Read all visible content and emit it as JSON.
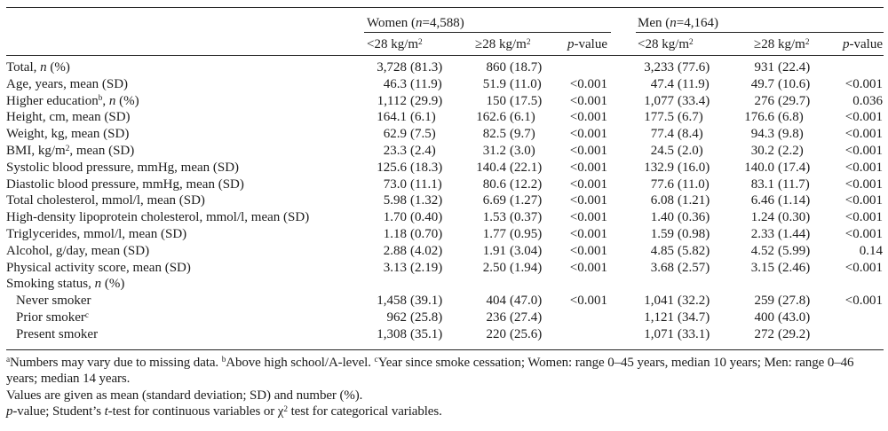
{
  "colors": {
    "background": "#ffffff",
    "text": "#1c1c1c",
    "rule": "#222222"
  },
  "table": {
    "group_headers": [
      {
        "segments": [
          [
            "Women ("
          ],
          [
            "n",
            "i"
          ],
          [
            "=4,588)"
          ]
        ]
      },
      {
        "segments": [
          [
            "Men ("
          ],
          [
            "n",
            "i"
          ],
          [
            "=4,164)"
          ]
        ]
      }
    ],
    "column_headers": {
      "lt28": {
        "segments": [
          [
            "<28 kg/m"
          ],
          [
            "2",
            "sup"
          ]
        ]
      },
      "ge28": {
        "segments": [
          [
            "≥28 kg/m"
          ],
          [
            "2",
            "sup"
          ]
        ]
      },
      "pvalue": {
        "segments": [
          [
            "p",
            "i"
          ],
          [
            "-value"
          ]
        ]
      }
    },
    "rows": [
      {
        "label": [
          [
            "Total, "
          ],
          [
            "n",
            "i"
          ],
          [
            " (%)"
          ]
        ],
        "indent": false,
        "w1": [
          "3,728",
          "(81.3)"
        ],
        "w2": [
          "860",
          "(18.7)"
        ],
        "wp": "",
        "m1": [
          "3,233",
          "(77.6)"
        ],
        "m2": [
          "931",
          "(22.4)"
        ],
        "mp": ""
      },
      {
        "label": [
          [
            "Age, years, mean (SD)"
          ]
        ],
        "indent": false,
        "w1": [
          "46.3",
          "(11.9)"
        ],
        "w2": [
          "51.9",
          "(11.0)"
        ],
        "wp": "<0.001",
        "m1": [
          "47.4",
          "(11.9)"
        ],
        "m2": [
          "49.7",
          "(10.6)"
        ],
        "mp": "<0.001"
      },
      {
        "label": [
          [
            "Higher education"
          ],
          [
            "b",
            "sup"
          ],
          [
            ", "
          ],
          [
            "n",
            "i"
          ],
          [
            " (%)"
          ]
        ],
        "indent": false,
        "w1": [
          "1,112",
          "(29.9)"
        ],
        "w2": [
          "150",
          "(17.5)"
        ],
        "wp": "<0.001",
        "m1": [
          "1,077",
          "(33.4)"
        ],
        "m2": [
          "276",
          "(29.7)"
        ],
        "mp": "0.036"
      },
      {
        "label": [
          [
            "Height, cm, mean (SD)"
          ]
        ],
        "indent": false,
        "w1": [
          "164.1",
          "(6.1)"
        ],
        "w2": [
          "162.6",
          "(6.1)"
        ],
        "wp": "<0.001",
        "m1": [
          "177.5",
          "(6.7)"
        ],
        "m2": [
          "176.6",
          "(6.8)"
        ],
        "mp": "<0.001"
      },
      {
        "label": [
          [
            "Weight, kg, mean (SD)"
          ]
        ],
        "indent": false,
        "w1": [
          "62.9",
          "(7.5)"
        ],
        "w2": [
          "82.5",
          "(9.7)"
        ],
        "wp": "<0.001",
        "m1": [
          "77.4",
          "(8.4)"
        ],
        "m2": [
          "94.3",
          "(9.8)"
        ],
        "mp": "<0.001"
      },
      {
        "label": [
          [
            "BMI, kg/m"
          ],
          [
            "2",
            "sup"
          ],
          [
            ", mean (SD)"
          ]
        ],
        "indent": false,
        "w1": [
          "23.3",
          "(2.4)"
        ],
        "w2": [
          "31.2",
          "(3.0)"
        ],
        "wp": "<0.001",
        "m1": [
          "24.5",
          "(2.0)"
        ],
        "m2": [
          "30.2",
          "(2.2)"
        ],
        "mp": "<0.001"
      },
      {
        "label": [
          [
            "Systolic blood pressure, mmHg, mean (SD)"
          ]
        ],
        "indent": false,
        "w1": [
          "125.6",
          "(18.3)"
        ],
        "w2": [
          "140.4",
          "(22.1)"
        ],
        "wp": "<0.001",
        "m1": [
          "132.9",
          "(16.0)"
        ],
        "m2": [
          "140.0",
          "(17.4)"
        ],
        "mp": "<0.001"
      },
      {
        "label": [
          [
            "Diastolic blood pressure, mmHg, mean (SD)"
          ]
        ],
        "indent": false,
        "w1": [
          "73.0",
          "(11.1)"
        ],
        "w2": [
          "80.6",
          "(12.2)"
        ],
        "wp": "<0.001",
        "m1": [
          "77.6",
          "(11.0)"
        ],
        "m2": [
          "83.1",
          "(11.7)"
        ],
        "mp": "<0.001"
      },
      {
        "label": [
          [
            "Total cholesterol, mmol/l, mean (SD)"
          ]
        ],
        "indent": false,
        "w1": [
          "5.98",
          "(1.32)"
        ],
        "w2": [
          "6.69",
          "(1.27)"
        ],
        "wp": "<0.001",
        "m1": [
          "6.08",
          "(1.21)"
        ],
        "m2": [
          "6.46",
          "(1.14)"
        ],
        "mp": "<0.001"
      },
      {
        "label": [
          [
            "High-density lipoprotein cholesterol, mmol/l, mean (SD)"
          ]
        ],
        "indent": false,
        "w1": [
          "1.70",
          "(0.40)"
        ],
        "w2": [
          "1.53",
          "(0.37)"
        ],
        "wp": "<0.001",
        "m1": [
          "1.40",
          "(0.36)"
        ],
        "m2": [
          "1.24",
          "(0.30)"
        ],
        "mp": "<0.001"
      },
      {
        "label": [
          [
            "Triglycerides, mmol/l, mean (SD)"
          ]
        ],
        "indent": false,
        "w1": [
          "1.18",
          "(0.70)"
        ],
        "w2": [
          "1.77",
          "(0.95)"
        ],
        "wp": "<0.001",
        "m1": [
          "1.59",
          "(0.98)"
        ],
        "m2": [
          "2.33",
          "(1.44)"
        ],
        "mp": "<0.001"
      },
      {
        "label": [
          [
            "Alcohol, g/day, mean (SD)"
          ]
        ],
        "indent": false,
        "w1": [
          "2.88",
          "(4.02)"
        ],
        "w2": [
          "1.91",
          "(3.04)"
        ],
        "wp": "<0.001",
        "m1": [
          "4.85",
          "(5.82)"
        ],
        "m2": [
          "4.52",
          "(5.99)"
        ],
        "mp": "0.14"
      },
      {
        "label": [
          [
            "Physical activity score, mean (SD)"
          ]
        ],
        "indent": false,
        "w1": [
          "3.13",
          "(2.19)"
        ],
        "w2": [
          "2.50",
          "(1.94)"
        ],
        "wp": "<0.001",
        "m1": [
          "3.68",
          "(2.57)"
        ],
        "m2": [
          "3.15",
          "(2.46)"
        ],
        "mp": "<0.001"
      },
      {
        "label": [
          [
            "Smoking status, "
          ],
          [
            "n",
            "i"
          ],
          [
            " (%)"
          ]
        ],
        "indent": false,
        "w1": [
          "",
          ""
        ],
        "w2": [
          "",
          ""
        ],
        "wp": "",
        "m1": [
          "",
          ""
        ],
        "m2": [
          "",
          ""
        ],
        "mp": ""
      },
      {
        "label": [
          [
            "Never smoker"
          ]
        ],
        "indent": true,
        "w1": [
          "1,458",
          "(39.1)"
        ],
        "w2": [
          "404",
          "(47.0)"
        ],
        "wp": "<0.001",
        "m1": [
          "1,041",
          "(32.2)"
        ],
        "m2": [
          "259",
          "(27.8)"
        ],
        "mp": "<0.001"
      },
      {
        "label": [
          [
            "Prior smoker"
          ],
          [
            "c",
            "sup"
          ]
        ],
        "indent": true,
        "w1": [
          "962",
          "(25.8)"
        ],
        "w2": [
          "236",
          "(27.4)"
        ],
        "wp": "",
        "m1": [
          "1,121",
          "(34.7)"
        ],
        "m2": [
          "400",
          "(43.0)"
        ],
        "mp": ""
      },
      {
        "label": [
          [
            "Present smoker"
          ]
        ],
        "indent": true,
        "w1": [
          "1,308",
          "(35.1)"
        ],
        "w2": [
          "220",
          "(25.6)"
        ],
        "wp": "",
        "m1": [
          "1,071",
          "(33.1)"
        ],
        "m2": [
          "272",
          "(29.2)"
        ],
        "mp": ""
      }
    ]
  },
  "footnotes": [
    {
      "segments": [
        [
          "a",
          "sup"
        ],
        [
          "Numbers may vary due to missing data. "
        ],
        [
          "b",
          "sup"
        ],
        [
          "Above high school/A-level. "
        ],
        [
          "c",
          "sup"
        ],
        [
          "Year since smoke cessation; Women: range 0–45 years, median 10 years; Men: range 0–46 years; median 14 years."
        ]
      ]
    },
    {
      "segments": [
        [
          "Values are given as mean (standard deviation; SD) and number (%)."
        ]
      ]
    },
    {
      "segments": [
        [
          "p",
          "i"
        ],
        [
          "-value; Student’s "
        ],
        [
          "t",
          "i"
        ],
        [
          "-test for continuous variables or χ"
        ],
        [
          "2",
          "sup"
        ],
        [
          " test for categorical variables."
        ]
      ]
    }
  ]
}
